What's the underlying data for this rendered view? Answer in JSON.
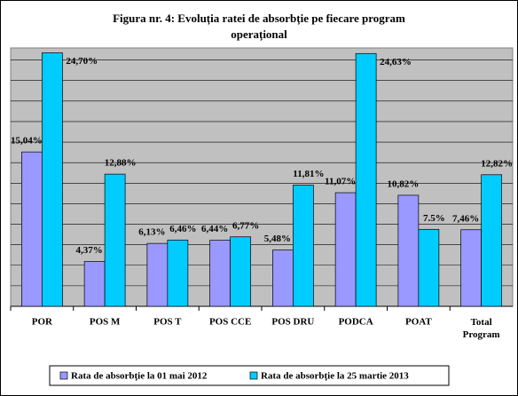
{
  "chart_data": {
    "type": "bar",
    "title": "Figura nr. 4: Evoluția ratei de absorbție pe fiecare program operațional",
    "categories": [
      "POR",
      "POS M",
      "POS T",
      "POS CCE",
      "POS DRU",
      "PODCA",
      "POAT",
      "Total Program"
    ],
    "series": [
      {
        "name": "Rata de absorbție la 01 mai 2012",
        "color": "#9999ff",
        "values": [
          15.04,
          4.37,
          6.13,
          6.44,
          5.48,
          11.07,
          10.82,
          7.46
        ],
        "value_labels": [
          "15,04%",
          "4,37%",
          "6,13%",
          "6,44%",
          "5,48%",
          "11,07%",
          "10,82%",
          "7,46%"
        ]
      },
      {
        "name": "Rata de absorbție la 25 martie 2013",
        "color": "#00ccff",
        "values": [
          24.7,
          12.88,
          6.46,
          6.77,
          11.81,
          24.63,
          7.5,
          12.82
        ],
        "value_labels": [
          "24,70%",
          "12,88%",
          "6,46%",
          "6,77%",
          "11,81%",
          "24,63%",
          "7.5%",
          "12,82%"
        ]
      }
    ],
    "ylim": [
      0,
      25
    ],
    "yticks": [
      0,
      2,
      4,
      6,
      8,
      10,
      12,
      14,
      16,
      18,
      20,
      22,
      24
    ],
    "grid": true,
    "legend": "bottom"
  }
}
